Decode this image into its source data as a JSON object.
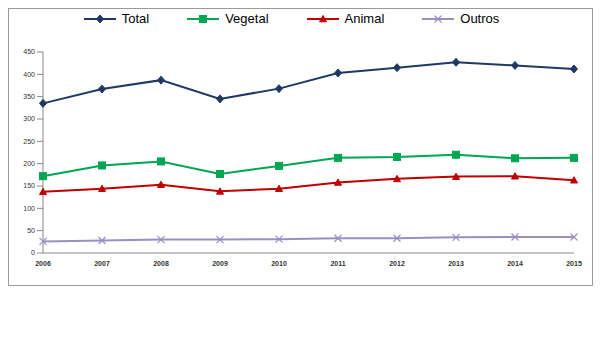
{
  "chart_data": {
    "type": "line",
    "categories": [
      "2006",
      "2007",
      "2008",
      "2009",
      "2010",
      "2011",
      "2012",
      "2013",
      "2014",
      "2015"
    ],
    "series": [
      {
        "name": "Total",
        "color": "#1f3864",
        "marker": "diamond",
        "values": [
          335,
          367,
          387,
          345,
          368,
          403,
          415,
          427,
          420,
          412
        ]
      },
      {
        "name": "Vegetal",
        "color": "#00a651",
        "marker": "square",
        "values": [
          172,
          196,
          205,
          177,
          195,
          213,
          215,
          220,
          212,
          213
        ]
      },
      {
        "name": "Animal",
        "color": "#c00000",
        "marker": "triangle",
        "values": [
          137,
          144,
          153,
          138,
          144,
          158,
          166,
          171,
          172,
          163
        ]
      },
      {
        "name": "Outros",
        "color": "#9b8ec4",
        "marker": "x",
        "values": [
          26,
          28,
          30,
          30,
          31,
          33,
          33,
          35,
          36,
          36
        ]
      }
    ],
    "ylim": [
      0,
      450
    ],
    "yticks": [
      0,
      50,
      100,
      150,
      200,
      250,
      300,
      350,
      400,
      450
    ],
    "grid": false,
    "legend": "top"
  }
}
